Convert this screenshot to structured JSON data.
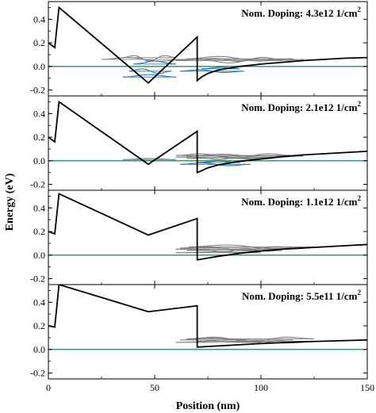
{
  "figure": {
    "ylabel": "Energy (eV)",
    "xlabel": "Position (nm)"
  },
  "colors": {
    "band": "#000000",
    "fermi": "#2e8b57",
    "electron_states": "#808080",
    "hole_states": "#1f78b4"
  },
  "chart_data": [
    {
      "type": "line",
      "label_text": "Nom. Doping: 4.3e12 1/cm",
      "label_sup": "2",
      "xlim": [
        0,
        150
      ],
      "ylim": [
        -0.25,
        0.55
      ],
      "yticks": [
        -0.2,
        0.0,
        0.2,
        0.4
      ],
      "ytick_labels": [
        "-0.2",
        "0.0",
        "0.2",
        "0.4"
      ],
      "band": {
        "x": [
          0,
          3,
          5,
          47,
          70,
          70,
          72,
          75,
          80,
          90,
          100,
          110,
          120,
          130,
          140,
          150
        ],
        "y": [
          0.2,
          0.16,
          0.5,
          -0.14,
          0.25,
          -0.12,
          -0.09,
          -0.06,
          -0.03,
          0.0,
          0.02,
          0.035,
          0.05,
          0.06,
          0.07,
          0.075
        ]
      },
      "fermi": 0.0,
      "states": [
        {
          "kind": "electron",
          "y": 0.06,
          "x": [
            25,
            65
          ],
          "amp": 0.02,
          "cycles": 2
        },
        {
          "kind": "electron",
          "y": 0.075,
          "x": [
            35,
            60
          ],
          "amp": 0.03,
          "cycles": 3
        },
        {
          "kind": "electron",
          "y": 0.05,
          "x": [
            60,
            110
          ],
          "amp": 0.02,
          "cycles": 3
        },
        {
          "kind": "electron",
          "y": 0.065,
          "x": [
            65,
            115
          ],
          "amp": 0.025,
          "cycles": 2
        },
        {
          "kind": "electron",
          "y": 0.06,
          "x": [
            70,
            120
          ],
          "amp": 0.018,
          "cycles": 4
        },
        {
          "kind": "hole",
          "y": 0.02,
          "x": [
            40,
            60
          ],
          "amp": 0.025,
          "cycles": 1
        },
        {
          "kind": "hole",
          "y": -0.04,
          "x": [
            38,
            58
          ],
          "amp": 0.025,
          "cycles": 2
        },
        {
          "kind": "hole",
          "y": -0.09,
          "x": [
            35,
            60
          ],
          "amp": 0.02,
          "cycles": 1
        },
        {
          "kind": "hole",
          "y": -0.04,
          "x": [
            62,
            92
          ],
          "amp": 0.015,
          "cycles": 2
        },
        {
          "kind": "hole",
          "y": -0.02,
          "x": [
            72,
            90
          ],
          "amp": 0.012,
          "cycles": 1
        }
      ]
    },
    {
      "type": "line",
      "label_text": "Nom. Doping: 2.1e12 1/cm",
      "label_sup": "2",
      "xlim": [
        0,
        150
      ],
      "ylim": [
        -0.25,
        0.55
      ],
      "yticks": [
        -0.2,
        0.0,
        0.2,
        0.4
      ],
      "ytick_labels": [
        "-0.2",
        "0.0",
        "0.2",
        "0.4"
      ],
      "band": {
        "x": [
          0,
          3,
          5,
          47,
          70,
          70,
          72,
          75,
          80,
          90,
          100,
          110,
          120,
          130,
          140,
          150
        ],
        "y": [
          0.2,
          0.16,
          0.5,
          -0.03,
          0.25,
          -0.1,
          -0.085,
          -0.06,
          -0.035,
          -0.005,
          0.015,
          0.035,
          0.05,
          0.06,
          0.07,
          0.08
        ]
      },
      "fermi": 0.0,
      "states": [
        {
          "kind": "electron",
          "y": 0.01,
          "x": [
            35,
            60
          ],
          "amp": 0.01,
          "cycles": 1
        },
        {
          "kind": "electron",
          "y": 0.03,
          "x": [
            60,
            110
          ],
          "amp": 0.02,
          "cycles": 2
        },
        {
          "kind": "electron",
          "y": 0.045,
          "x": [
            60,
            115
          ],
          "amp": 0.025,
          "cycles": 3
        },
        {
          "kind": "electron",
          "y": 0.04,
          "x": [
            65,
            120
          ],
          "amp": 0.02,
          "cycles": 2
        },
        {
          "kind": "electron",
          "y": 0.02,
          "x": [
            65,
            105
          ],
          "amp": 0.012,
          "cycles": 4
        },
        {
          "kind": "hole",
          "y": -0.03,
          "x": [
            62,
            95
          ],
          "amp": 0.015,
          "cycles": 2
        },
        {
          "kind": "hole",
          "y": -0.015,
          "x": [
            70,
            90
          ],
          "amp": 0.012,
          "cycles": 1
        }
      ]
    },
    {
      "type": "line",
      "label_text": "Nom. Doping: 1.1e12 1/cm",
      "label_sup": "2",
      "xlim": [
        0,
        150
      ],
      "ylim": [
        -0.25,
        0.55
      ],
      "yticks": [
        -0.2,
        0.0,
        0.2,
        0.4
      ],
      "ytick_labels": [
        "-0.2",
        "0.0",
        "0.2",
        "0.4"
      ],
      "band": {
        "x": [
          0,
          3,
          5,
          47,
          70,
          70,
          72,
          75,
          80,
          90,
          100,
          110,
          120,
          130,
          140,
          150
        ],
        "y": [
          0.2,
          0.18,
          0.52,
          0.17,
          0.31,
          -0.04,
          -0.035,
          -0.025,
          -0.01,
          0.015,
          0.035,
          0.05,
          0.06,
          0.07,
          0.08,
          0.09
        ]
      },
      "fermi": 0.0,
      "states": [
        {
          "kind": "electron",
          "y": 0.02,
          "x": [
            60,
            100
          ],
          "amp": 0.008,
          "cycles": 1
        },
        {
          "kind": "electron",
          "y": 0.05,
          "x": [
            60,
            110
          ],
          "amp": 0.02,
          "cycles": 2
        },
        {
          "kind": "electron",
          "y": 0.06,
          "x": [
            62,
            120
          ],
          "amp": 0.02,
          "cycles": 3
        },
        {
          "kind": "electron",
          "y": 0.07,
          "x": [
            66,
            125
          ],
          "amp": 0.02,
          "cycles": 2
        },
        {
          "kind": "electron",
          "y": 0.04,
          "x": [
            65,
            110
          ],
          "amp": 0.015,
          "cycles": 4
        }
      ]
    },
    {
      "type": "line",
      "label_text": "Nom. Doping: 5.5e11 1/cm",
      "label_sup": "2",
      "xlim": [
        0,
        150
      ],
      "ylim": [
        -0.25,
        0.55
      ],
      "yticks": [
        -0.2,
        0.0,
        0.2,
        0.4
      ],
      "ytick_labels": [
        "-0.2",
        "0.0",
        "0.2",
        "0.4"
      ],
      "xticks": [
        0,
        50,
        100,
        150
      ],
      "xtick_labels": [
        "0",
        "50",
        "100",
        "150"
      ],
      "band": {
        "x": [
          0,
          3,
          5,
          47,
          70,
          70,
          72,
          75,
          80,
          90,
          100,
          110,
          120,
          130,
          140,
          150
        ],
        "y": [
          0.2,
          0.19,
          0.55,
          0.32,
          0.37,
          0.02,
          0.022,
          0.025,
          0.03,
          0.04,
          0.05,
          0.058,
          0.065,
          0.07,
          0.075,
          0.08
        ]
      },
      "fermi": 0.0,
      "states": [
        {
          "kind": "electron",
          "y": 0.06,
          "x": [
            60,
            100
          ],
          "amp": 0.01,
          "cycles": 1
        },
        {
          "kind": "electron",
          "y": 0.08,
          "x": [
            62,
            115
          ],
          "amp": 0.02,
          "cycles": 2
        },
        {
          "kind": "electron",
          "y": 0.09,
          "x": [
            65,
            125
          ],
          "amp": 0.025,
          "cycles": 3
        },
        {
          "kind": "electron",
          "y": 0.07,
          "x": [
            70,
            130
          ],
          "amp": 0.02,
          "cycles": 2
        }
      ]
    }
  ]
}
